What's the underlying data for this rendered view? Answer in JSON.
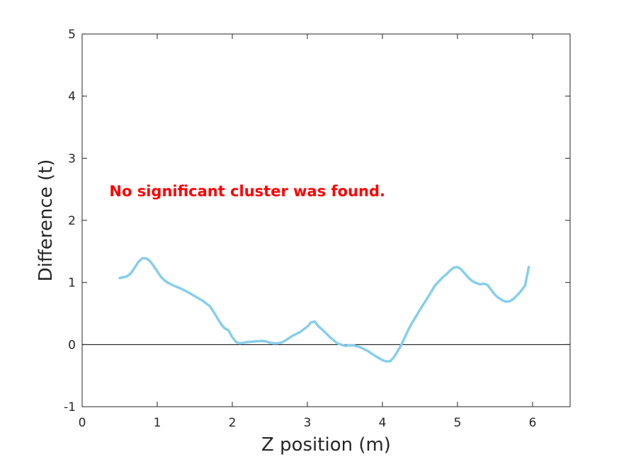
{
  "chart_data": {
    "type": "line",
    "xlabel": "Z position (m)",
    "ylabel": "Difference (t)",
    "xlim": [
      0,
      6.5
    ],
    "ylim": [
      -1,
      5
    ],
    "xticks": [
      "0",
      "1",
      "2",
      "3",
      "4",
      "5",
      "6"
    ],
    "yticks": [
      "-1",
      "0",
      "1",
      "2",
      "3",
      "4",
      "5"
    ],
    "grid": false,
    "annotation": {
      "text": "No significant cluster was found.",
      "color": "#ff0000"
    },
    "reference_line": {
      "y": 0,
      "color": "#000000"
    },
    "series": [
      {
        "color": "#87ceeb",
        "x": [
          0.5,
          0.6,
          0.65,
          0.7,
          0.75,
          0.8,
          0.85,
          0.9,
          0.95,
          1.0,
          1.05,
          1.1,
          1.15,
          1.2,
          1.3,
          1.4,
          1.5,
          1.6,
          1.7,
          1.75,
          1.8,
          1.85,
          1.9,
          1.95,
          2.0,
          2.05,
          2.1,
          2.15,
          2.2,
          2.3,
          2.4,
          2.45,
          2.5,
          2.55,
          2.6,
          2.65,
          2.7,
          2.75,
          2.8,
          2.9,
          3.0,
          3.05,
          3.1,
          3.15,
          3.2,
          3.3,
          3.4,
          3.5,
          3.6,
          3.7,
          3.8,
          3.9,
          4.0,
          4.05,
          4.1,
          4.15,
          4.2,
          4.25,
          4.3,
          4.35,
          4.4,
          4.45,
          4.5,
          4.6,
          4.7,
          4.8,
          4.85,
          4.9,
          4.95,
          5.0,
          5.05,
          5.1,
          5.15,
          5.2,
          5.25,
          5.3,
          5.35,
          5.4,
          5.45,
          5.5,
          5.55,
          5.6,
          5.65,
          5.7,
          5.75,
          5.8,
          5.85,
          5.9,
          5.95
        ],
        "y": [
          1.07,
          1.1,
          1.15,
          1.24,
          1.33,
          1.39,
          1.39,
          1.35,
          1.27,
          1.18,
          1.09,
          1.03,
          0.99,
          0.96,
          0.91,
          0.85,
          0.78,
          0.71,
          0.62,
          0.53,
          0.43,
          0.33,
          0.26,
          0.23,
          0.12,
          0.04,
          0.02,
          0.03,
          0.04,
          0.05,
          0.06,
          0.05,
          0.03,
          0.02,
          0.02,
          0.03,
          0.06,
          0.1,
          0.14,
          0.2,
          0.29,
          0.36,
          0.37,
          0.29,
          0.24,
          0.12,
          0.02,
          -0.02,
          -0.01,
          -0.04,
          -0.1,
          -0.18,
          -0.25,
          -0.27,
          -0.27,
          -0.21,
          -0.11,
          -0.01,
          0.12,
          0.25,
          0.36,
          0.46,
          0.56,
          0.75,
          0.95,
          1.08,
          1.13,
          1.19,
          1.24,
          1.25,
          1.21,
          1.14,
          1.07,
          1.02,
          0.99,
          0.97,
          0.98,
          0.96,
          0.88,
          0.8,
          0.75,
          0.71,
          0.69,
          0.7,
          0.74,
          0.8,
          0.87,
          0.95,
          1.25
        ]
      }
    ]
  }
}
